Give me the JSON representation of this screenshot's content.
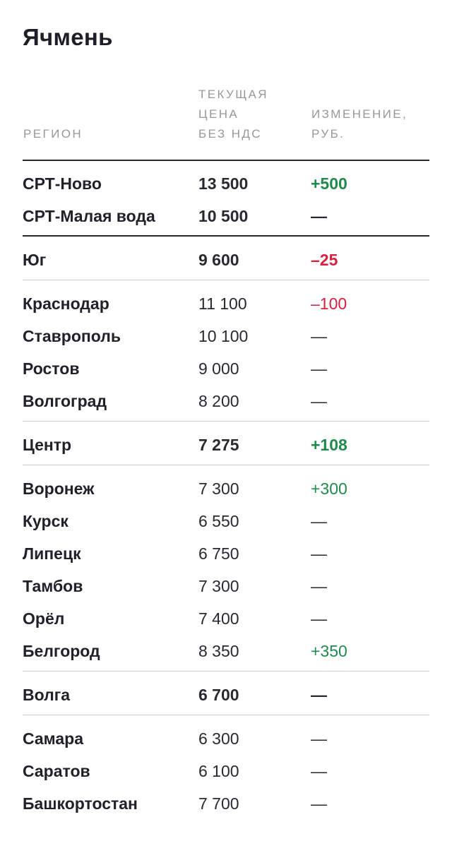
{
  "title": "Ячмень",
  "headers": {
    "region": "РЕГИОН",
    "price": "ТЕКУЩАЯ\nЦЕНА\nБЕЗ НДС",
    "change": "ИЗМЕНЕНИЕ,\nРУБ."
  },
  "colors": {
    "positive": "#1f8a4c",
    "negative": "#d8203f",
    "text": "#23202a"
  },
  "rows": [
    {
      "region": "СРТ-Ново",
      "price": "13 500",
      "change": "+500",
      "bold": true,
      "trend": "pos"
    },
    {
      "region": "СРТ-Малая вода",
      "price": "10 500",
      "change": "—",
      "bold": true,
      "trend": "none"
    },
    {
      "region": "Юг",
      "price": "9 600",
      "change": "–25",
      "bold": true,
      "trend": "neg"
    },
    {
      "region": "Краснодар",
      "price": "11 100",
      "change": "–100",
      "bold": false,
      "trend": "neg"
    },
    {
      "region": "Ставрополь",
      "price": "10 100",
      "change": "—",
      "bold": false,
      "trend": "none"
    },
    {
      "region": "Ростов",
      "price": "9 000",
      "change": "—",
      "bold": false,
      "trend": "none"
    },
    {
      "region": "Волгоград",
      "price": "8 200",
      "change": "—",
      "bold": false,
      "trend": "none"
    },
    {
      "region": "Центр",
      "price": "7 275",
      "change": "+108",
      "bold": true,
      "trend": "pos"
    },
    {
      "region": "Воронеж",
      "price": "7 300",
      "change": "+300",
      "bold": false,
      "trend": "pos"
    },
    {
      "region": "Курск",
      "price": "6 550",
      "change": "—",
      "bold": false,
      "trend": "none"
    },
    {
      "region": "Липецк",
      "price": "6 750",
      "change": "—",
      "bold": false,
      "trend": "none"
    },
    {
      "region": "Тамбов",
      "price": "7 300",
      "change": "—",
      "bold": false,
      "trend": "none"
    },
    {
      "region": "Орёл",
      "price": "7 400",
      "change": "—",
      "bold": false,
      "trend": "none"
    },
    {
      "region": "Белгород",
      "price": "8 350",
      "change": "+350",
      "bold": false,
      "trend": "pos"
    },
    {
      "region": "Волга",
      "price": "6 700",
      "change": "—",
      "bold": true,
      "trend": "none"
    },
    {
      "region": "Самара",
      "price": "6 300",
      "change": "—",
      "bold": false,
      "trend": "none"
    },
    {
      "region": "Саратов",
      "price": "6 100",
      "change": "—",
      "bold": false,
      "trend": "none"
    },
    {
      "region": "Башкортостан",
      "price": "7 700",
      "change": "—",
      "bold": false,
      "trend": "none"
    }
  ]
}
